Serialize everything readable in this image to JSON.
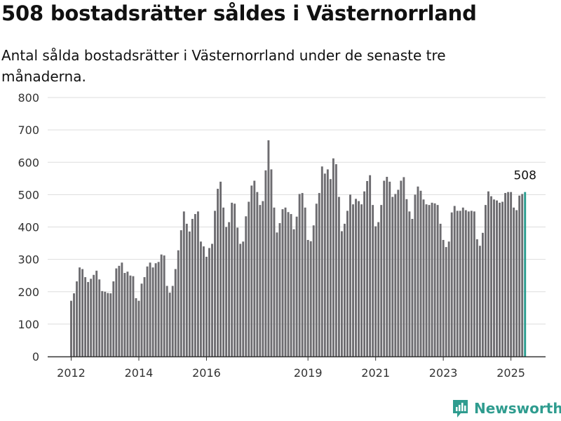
{
  "title": "508 bostadsrätter såldes i Västernorrland",
  "subtitle": "Antal sålda bostadsrätter i Västernorrland under de senaste tre månaderna.",
  "brand": "Newsworthy",
  "colors": {
    "bar": "#6d6c70",
    "highlight": "#2a9d8f",
    "grid": "#dddddd",
    "axis": "#333333",
    "brand": "#2f9c8f"
  },
  "chart_data": {
    "type": "bar",
    "title": "508 bostadsrätter såldes i Västernorrland",
    "subtitle": "Antal sålda bostadsrätter i Västernorrland under de senaste tre månaderna.",
    "xlabel": "",
    "ylabel": "",
    "ylim": [
      0,
      800
    ],
    "yticks": [
      "0",
      "100",
      "200",
      "300",
      "400",
      "500",
      "600",
      "700",
      "800"
    ],
    "xticks": [
      {
        "label": "2012",
        "month_index": 0
      },
      {
        "label": "2014",
        "month_index": 24
      },
      {
        "label": "2016",
        "month_index": 48
      },
      {
        "label": "2019",
        "month_index": 84
      },
      {
        "label": "2021",
        "month_index": 108
      },
      {
        "label": "2023",
        "month_index": 132
      },
      {
        "label": "2025",
        "month_index": 156
      }
    ],
    "grid": true,
    "start": "2012-01",
    "highlight_label": "508",
    "values": [
      172,
      195,
      232,
      275,
      270,
      245,
      230,
      240,
      252,
      265,
      238,
      202,
      200,
      196,
      195,
      232,
      272,
      280,
      290,
      258,
      262,
      250,
      248,
      180,
      172,
      225,
      245,
      278,
      290,
      275,
      288,
      292,
      315,
      312,
      218,
      197,
      218,
      270,
      328,
      390,
      448,
      410,
      386,
      425,
      440,
      448,
      355,
      340,
      308,
      335,
      348,
      450,
      518,
      540,
      460,
      400,
      415,
      475,
      472,
      398,
      348,
      355,
      433,
      478,
      528,
      543,
      508,
      468,
      480,
      575,
      668,
      578,
      460,
      383,
      412,
      455,
      460,
      446,
      440,
      393,
      432,
      502,
      505,
      460,
      360,
      356,
      405,
      472,
      505,
      587,
      565,
      578,
      548,
      612,
      594,
      493,
      387,
      410,
      450,
      500,
      470,
      487,
      480,
      470,
      510,
      542,
      560,
      468,
      402,
      415,
      468,
      543,
      555,
      540,
      493,
      502,
      515,
      543,
      554,
      486,
      448,
      425,
      500,
      525,
      512,
      485,
      470,
      468,
      475,
      473,
      468,
      410,
      360,
      338,
      355,
      445,
      465,
      450,
      450,
      460,
      452,
      448,
      450,
      448,
      362,
      342,
      382,
      468,
      510,
      495,
      485,
      482,
      475,
      478,
      505,
      508,
      508,
      460,
      452,
      497,
      502,
      508
    ]
  }
}
